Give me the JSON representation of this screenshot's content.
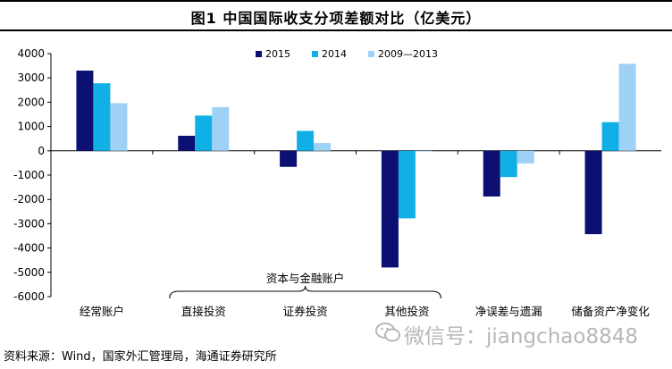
{
  "title": "图1   中国国际收支分项差额对比（亿美元）",
  "source": "资料来源：Wind，国家外汇管理局，海通证券研究所",
  "watermark": "微信号：jiangchao8848",
  "chart_data": {
    "type": "bar",
    "title": "图1   中国国际收支分项差额对比（亿美元）",
    "xlabel": "",
    "ylabel": "",
    "ylim": [
      -6000,
      4000
    ],
    "yticks": [
      4000,
      3000,
      2000,
      1000,
      0,
      -1000,
      -2000,
      -3000,
      -4000,
      -5000,
      -6000
    ],
    "grid": false,
    "legend_position": "top-center",
    "categories": [
      "经常账户",
      "直接投资",
      "证券投资",
      "其他投资",
      "净误差与遗漏",
      "储备资产净变化"
    ],
    "group_label": {
      "text": "资本与金融账户",
      "categories": [
        "直接投资",
        "证券投资",
        "其他投资"
      ]
    },
    "series": [
      {
        "name": "2015",
        "color": "#0c1073",
        "values": [
          3300,
          620,
          -660,
          -4800,
          -1880,
          -3430
        ]
      },
      {
        "name": "2014",
        "color": "#10b0e6",
        "values": [
          2780,
          1450,
          820,
          -2780,
          -1080,
          1180
        ]
      },
      {
        "name": "2009—2013",
        "color": "#9fd0f5",
        "values": [
          1960,
          1800,
          320,
          -20,
          -520,
          3580
        ]
      }
    ]
  }
}
